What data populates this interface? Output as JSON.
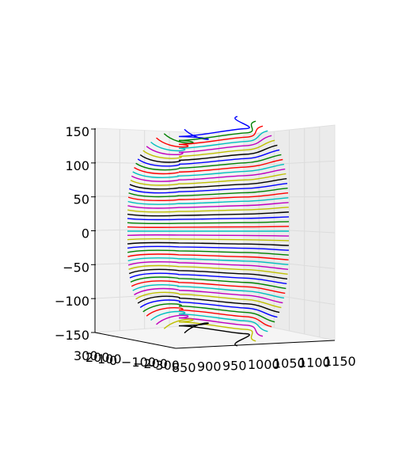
{
  "chart_data": {
    "type": "line",
    "projection": "3d",
    "title": "",
    "axes": {
      "x": {
        "label": "",
        "ticks": [
          "850",
          "900",
          "950",
          "1000",
          "1050",
          "1100",
          "1150"
        ],
        "range": [
          850,
          1150
        ]
      },
      "y": {
        "label": "",
        "ticks": [
          "300",
          "200",
          "100",
          "0",
          "−100",
          "−200",
          "−300"
        ],
        "range": [
          -300,
          300
        ]
      },
      "z": {
        "label": "",
        "ticks": [
          "150",
          "100",
          "50",
          "0",
          "−50",
          "−100",
          "−150"
        ],
        "range": [
          -150,
          150
        ]
      }
    },
    "grid": true,
    "legend": "none",
    "surface": {
      "description": "stacked horizontal cross-section loops of a closed barrel-shaped body",
      "levels_z": [
        -150,
        150
      ],
      "level_count": 49,
      "x_extent": [
        850,
        1150
      ],
      "y_extent": [
        -300,
        300
      ]
    },
    "series_colors": [
      "#0000ff",
      "#008000",
      "#ff0000",
      "#00bfbf",
      "#bf00bf",
      "#bfbf00",
      "#000000"
    ]
  }
}
